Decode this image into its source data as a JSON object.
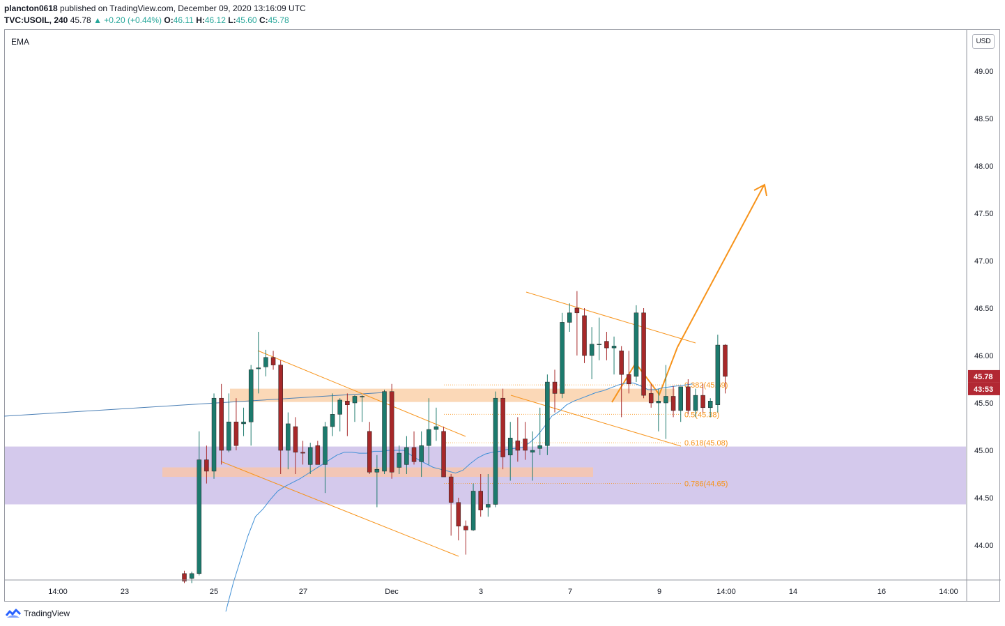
{
  "header": {
    "user": "plancton0618",
    "published": "published on TradingView.com, December 09, 2020 13:16:09 UTC",
    "symbol": "TVC:USOIL, 240",
    "last": "45.78",
    "change": "▲ +0.20 (+0.44%)",
    "o_label": "O:",
    "o_value": "46.11",
    "h_label": "H:",
    "h_value": "46.12",
    "l_label": "L:",
    "l_value": "45.60",
    "c_label": "C:",
    "c_value": "45.78"
  },
  "indicator_label": "EMA",
  "currency_button": "USD",
  "footer": {
    "brand": "TradingView",
    "logo_icon": "tradingview-logo-icon"
  },
  "price_tags": {
    "last_price": "45.78",
    "countdown": "43:53",
    "color": "#b22833"
  },
  "colors": {
    "bull": "#1c7a6d",
    "bear": "#a72829",
    "ema": "#3f8fd6",
    "drawing": "#f7931a",
    "purple_zone": "#d4c9ec",
    "orange_zone": "#fbd8b7",
    "red_zone": "#f2c6b6"
  },
  "chart_data": {
    "type": "candlestick",
    "symbol": "TVC:USOIL",
    "interval": "240",
    "currency": "USD",
    "y_axis": {
      "range": [
        43.63,
        49.38
      ],
      "ticks": [
        "44.00",
        "44.50",
        "45.00",
        "45.50",
        "46.00",
        "46.50",
        "47.00",
        "47.50",
        "48.00",
        "48.50",
        "49.00"
      ]
    },
    "x_axis": {
      "ticks": [
        "14:00",
        "23",
        "25",
        "27",
        "Dec",
        "3",
        "7",
        "9",
        "14:00",
        "14",
        "16",
        "14:00"
      ]
    },
    "candles": [
      {
        "o": 43.7,
        "h": 43.73,
        "l": 43.6,
        "c": 43.62
      },
      {
        "o": 43.65,
        "h": 43.72,
        "l": 43.6,
        "c": 43.7
      },
      {
        "o": 43.7,
        "h": 45.2,
        "l": 43.68,
        "c": 44.9
      },
      {
        "o": 44.9,
        "h": 45.05,
        "l": 44.65,
        "c": 44.78
      },
      {
        "o": 44.78,
        "h": 45.6,
        "l": 44.7,
        "c": 45.55
      },
      {
        "o": 45.55,
        "h": 45.7,
        "l": 44.85,
        "c": 45.0
      },
      {
        "o": 45.0,
        "h": 45.6,
        "l": 44.98,
        "c": 45.3
      },
      {
        "o": 45.3,
        "h": 45.55,
        "l": 45.0,
        "c": 45.05
      },
      {
        "o": 45.28,
        "h": 45.45,
        "l": 45.15,
        "c": 45.3
      },
      {
        "o": 45.3,
        "h": 45.9,
        "l": 45.05,
        "c": 45.85
      },
      {
        "o": 45.86,
        "h": 46.25,
        "l": 45.6,
        "c": 45.87
      },
      {
        "o": 45.88,
        "h": 46.06,
        "l": 45.78,
        "c": 45.98
      },
      {
        "o": 45.98,
        "h": 46.05,
        "l": 45.85,
        "c": 45.9
      },
      {
        "o": 45.9,
        "h": 45.95,
        "l": 44.75,
        "c": 45.0
      },
      {
        "o": 45.0,
        "h": 45.4,
        "l": 44.8,
        "c": 45.28
      },
      {
        "o": 45.25,
        "h": 45.35,
        "l": 44.75,
        "c": 44.98
      },
      {
        "o": 44.98,
        "h": 45.1,
        "l": 44.85,
        "c": 44.97
      },
      {
        "o": 44.85,
        "h": 45.08,
        "l": 44.75,
        "c": 45.03
      },
      {
        "o": 45.05,
        "h": 45.1,
        "l": 44.85,
        "c": 44.85
      },
      {
        "o": 44.85,
        "h": 45.3,
        "l": 44.55,
        "c": 45.25
      },
      {
        "o": 45.25,
        "h": 45.6,
        "l": 45.15,
        "c": 45.38
      },
      {
        "o": 45.38,
        "h": 45.55,
        "l": 45.2,
        "c": 45.53
      },
      {
        "o": 45.52,
        "h": 45.6,
        "l": 45.15,
        "c": 45.48
      },
      {
        "o": 45.5,
        "h": 45.58,
        "l": 45.3,
        "c": 45.57
      },
      {
        "o": 45.57,
        "h": 45.58,
        "l": 45.3,
        "c": 45.57
      },
      {
        "o": 45.2,
        "h": 45.3,
        "l": 44.75,
        "c": 44.77
      },
      {
        "o": 44.77,
        "h": 44.95,
        "l": 44.4,
        "c": 44.8
      },
      {
        "o": 44.78,
        "h": 45.64,
        "l": 44.75,
        "c": 45.62
      },
      {
        "o": 45.62,
        "h": 45.7,
        "l": 44.7,
        "c": 44.77
      },
      {
        "o": 44.82,
        "h": 45.05,
        "l": 44.75,
        "c": 44.97
      },
      {
        "o": 44.85,
        "h": 45.15,
        "l": 44.75,
        "c": 45.03
      },
      {
        "o": 45.03,
        "h": 45.2,
        "l": 44.85,
        "c": 44.88
      },
      {
        "o": 44.88,
        "h": 45.2,
        "l": 44.72,
        "c": 45.05
      },
      {
        "o": 45.05,
        "h": 45.55,
        "l": 44.85,
        "c": 45.22
      },
      {
        "o": 45.22,
        "h": 45.45,
        "l": 45.1,
        "c": 45.25
      },
      {
        "o": 45.2,
        "h": 45.25,
        "l": 44.75,
        "c": 44.72
      },
      {
        "o": 44.72,
        "h": 44.75,
        "l": 44.1,
        "c": 44.45
      },
      {
        "o": 44.45,
        "h": 44.5,
        "l": 44.05,
        "c": 44.2
      },
      {
        "o": 44.2,
        "h": 44.26,
        "l": 43.9,
        "c": 44.16
      },
      {
        "o": 44.16,
        "h": 44.65,
        "l": 44.15,
        "c": 44.57
      },
      {
        "o": 44.57,
        "h": 44.75,
        "l": 44.3,
        "c": 44.37
      },
      {
        "o": 44.4,
        "h": 44.75,
        "l": 44.3,
        "c": 44.43
      },
      {
        "o": 44.43,
        "h": 45.62,
        "l": 44.4,
        "c": 45.55
      },
      {
        "o": 45.55,
        "h": 45.65,
        "l": 44.8,
        "c": 44.93
      },
      {
        "o": 44.95,
        "h": 45.3,
        "l": 44.68,
        "c": 45.13
      },
      {
        "o": 45.1,
        "h": 45.35,
        "l": 44.88,
        "c": 45.0
      },
      {
        "o": 45.12,
        "h": 45.3,
        "l": 44.9,
        "c": 45.0
      },
      {
        "o": 44.98,
        "h": 45.2,
        "l": 44.68,
        "c": 45.0
      },
      {
        "o": 45.02,
        "h": 45.45,
        "l": 44.95,
        "c": 45.05
      },
      {
        "o": 45.05,
        "h": 45.8,
        "l": 44.95,
        "c": 45.72
      },
      {
        "o": 45.72,
        "h": 45.85,
        "l": 45.4,
        "c": 45.6
      },
      {
        "o": 45.6,
        "h": 46.45,
        "l": 45.55,
        "c": 46.35
      },
      {
        "o": 46.35,
        "h": 46.55,
        "l": 46.25,
        "c": 46.45
      },
      {
        "o": 46.5,
        "h": 46.68,
        "l": 46.0,
        "c": 46.45
      },
      {
        "o": 46.42,
        "h": 46.5,
        "l": 45.92,
        "c": 46.0
      },
      {
        "o": 46.0,
        "h": 46.3,
        "l": 45.75,
        "c": 46.12
      },
      {
        "o": 46.12,
        "h": 46.4,
        "l": 45.95,
        "c": 46.12
      },
      {
        "o": 46.15,
        "h": 46.25,
        "l": 45.95,
        "c": 46.08
      },
      {
        "o": 46.08,
        "h": 46.2,
        "l": 45.8,
        "c": 46.1
      },
      {
        "o": 46.05,
        "h": 46.1,
        "l": 45.35,
        "c": 45.8
      },
      {
        "o": 45.8,
        "h": 46.05,
        "l": 45.6,
        "c": 45.7
      },
      {
        "o": 45.78,
        "h": 46.53,
        "l": 45.72,
        "c": 46.45
      },
      {
        "o": 46.45,
        "h": 46.5,
        "l": 45.55,
        "c": 45.58
      },
      {
        "o": 45.6,
        "h": 45.7,
        "l": 45.45,
        "c": 45.5
      },
      {
        "o": 45.5,
        "h": 45.65,
        "l": 45.2,
        "c": 45.52
      },
      {
        "o": 45.5,
        "h": 45.9,
        "l": 45.12,
        "c": 45.57
      },
      {
        "o": 45.57,
        "h": 45.68,
        "l": 45.35,
        "c": 45.42
      },
      {
        "o": 45.42,
        "h": 45.65,
        "l": 45.3,
        "c": 45.67
      },
      {
        "o": 45.67,
        "h": 45.75,
        "l": 45.38,
        "c": 45.42
      },
      {
        "o": 45.42,
        "h": 45.65,
        "l": 45.35,
        "c": 45.58
      },
      {
        "o": 45.58,
        "h": 45.7,
        "l": 45.4,
        "c": 45.45
      },
      {
        "o": 45.45,
        "h": 45.55,
        "l": 45.35,
        "c": 45.52
      },
      {
        "o": 45.48,
        "h": 46.22,
        "l": 45.4,
        "c": 46.11
      },
      {
        "o": 46.11,
        "h": 46.12,
        "l": 45.6,
        "c": 45.78
      }
    ],
    "ema": [
      43.3,
      43.6,
      43.85,
      44.1,
      44.3,
      44.38,
      44.48,
      44.57,
      44.62,
      44.66,
      44.7,
      44.75,
      44.8,
      44.85,
      44.9,
      44.95,
      44.98,
      44.98,
      44.97,
      44.97,
      44.99,
      44.99,
      45.0,
      45.0,
      45.0,
      44.95,
      44.9,
      44.86,
      44.82,
      44.8,
      44.78,
      44.76,
      44.79,
      44.86,
      44.92,
      44.96,
      44.98,
      44.99,
      45.01,
      45.02,
      45.03,
      45.08,
      45.15,
      45.25,
      45.36,
      45.41,
      45.48,
      45.52,
      45.55,
      45.58,
      45.61,
      45.63,
      45.66,
      45.69,
      45.71,
      45.71,
      45.68,
      45.64,
      45.64,
      45.66,
      45.67,
      45.68,
      45.69,
      45.7
    ],
    "annotations": {
      "fibonacci": [
        {
          "label": "0.382(45.69)",
          "price": 45.69
        },
        {
          "label": "0.5(45.38)",
          "price": 45.38
        },
        {
          "label": "0.618(45.08)",
          "price": 45.08
        },
        {
          "label": "0.786(44.65)",
          "price": 44.65
        }
      ],
      "zones": [
        {
          "name": "support-zone",
          "from": 44.43,
          "to": 45.04
        },
        {
          "name": "resistance-band",
          "from": 45.51,
          "to": 45.65
        },
        {
          "name": "demand-band",
          "from": 44.72,
          "to": 44.82
        }
      ],
      "arrow_target": 47.8
    }
  }
}
